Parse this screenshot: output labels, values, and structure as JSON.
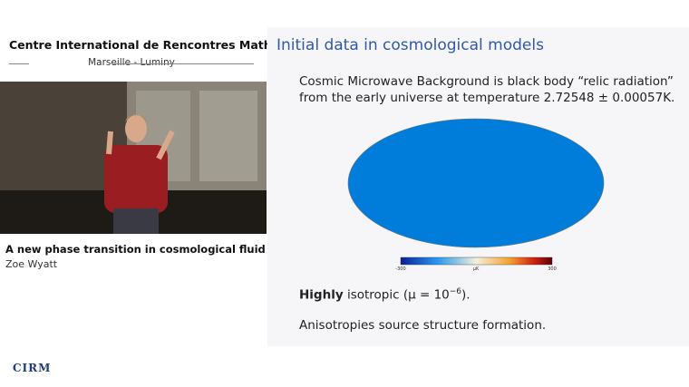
{
  "header": {
    "title": "Centre International de Rencontres Mathématiques",
    "subtitle": "Marseille - Luminy"
  },
  "video": {
    "talk_title": "A new phase transition in cosmological fluid dynamics",
    "speaker": "Zoe Wyatt"
  },
  "logo": "CIRM",
  "slide": {
    "title": "Initial data in cosmological models",
    "paragraph": [
      "Cosmic Microwave Background is black body “relic radiation”",
      "from the early universe at temperature 2.72548 ± 0.00057K."
    ],
    "colorbar": {
      "min_label": "-300",
      "unit_label": "μK",
      "max_label": "300"
    },
    "isotropy": {
      "bold": "Highly",
      "text": "isotropic (μ = 10",
      "exponent": "−6",
      "end": ")."
    },
    "closing": "Anisotropies source structure formation."
  }
}
